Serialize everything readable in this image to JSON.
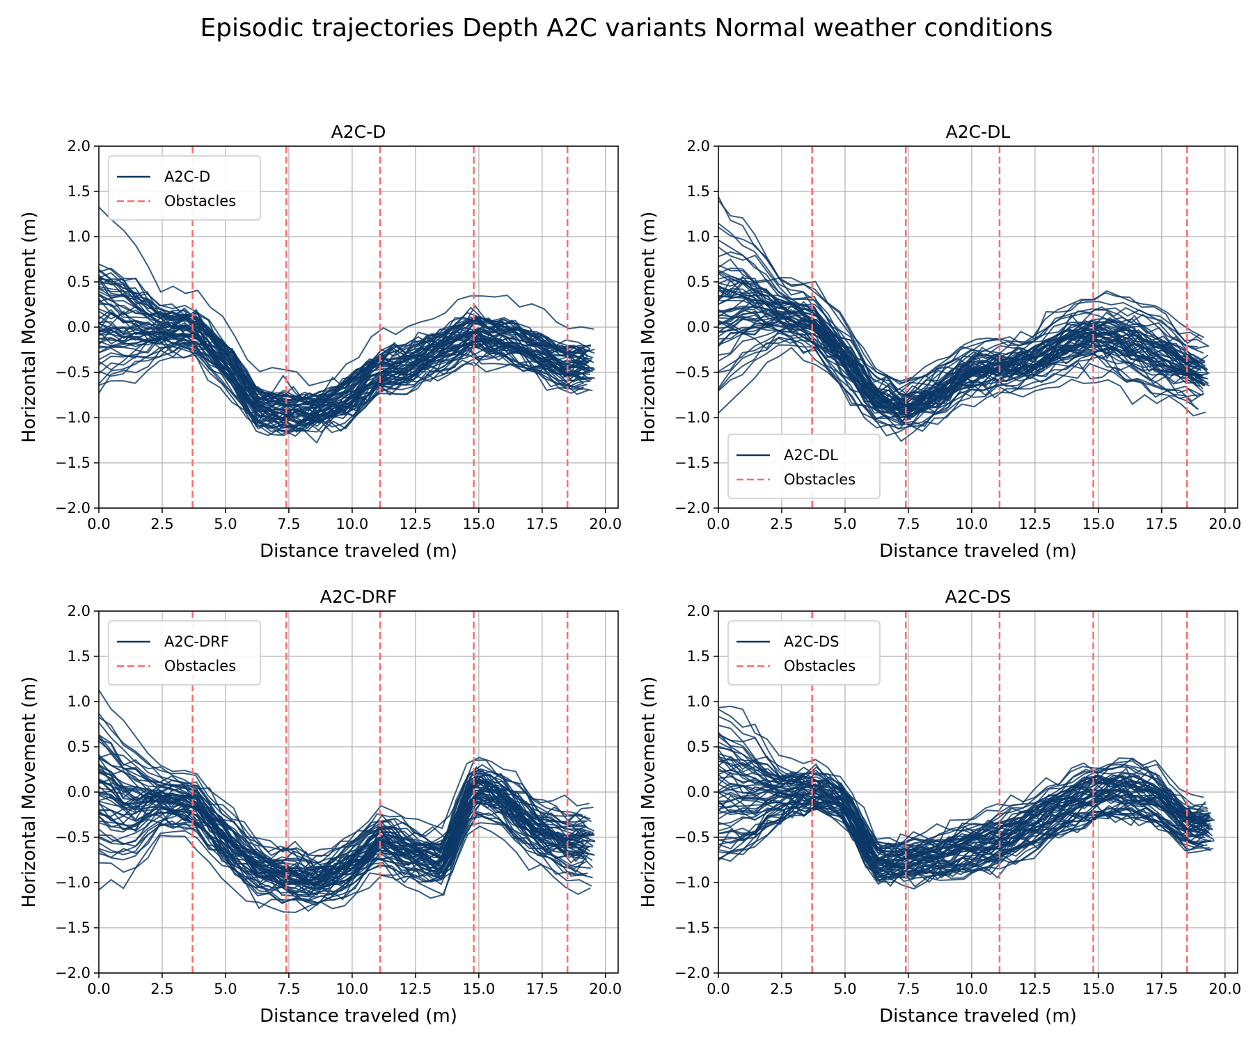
{
  "figure": {
    "title": "Episodic trajectories Depth  A2C variants Normal weather conditions"
  },
  "chart_data": [
    {
      "type": "line",
      "title": "A2C-D",
      "xlabel": "Distance traveled (m)",
      "ylabel": "Horizontal Movement (m)",
      "xlim": [
        0,
        20.5
      ],
      "ylim": [
        -2.0,
        2.0
      ],
      "xticks": [
        "0.0",
        "2.5",
        "5.0",
        "7.5",
        "10.0",
        "12.5",
        "15.0",
        "17.5",
        "20.0"
      ],
      "yticks": [
        "2.0",
        "1.5",
        "1.0",
        "0.5",
        "0.0",
        "−0.5",
        "−1.0",
        "−1.5",
        "−2.0"
      ],
      "grid": true,
      "legend_position": "top-left",
      "legend": [
        "A2C-D",
        "Obstacles"
      ],
      "obstacles_x": [
        3.7,
        7.4,
        11.1,
        14.8,
        18.5
      ],
      "series_color": "#0b3866",
      "obstacle_color": "#ff6b6b",
      "x": [
        0,
        1.2,
        2.5,
        3.7,
        5.0,
        6.2,
        7.4,
        8.6,
        9.9,
        11.1,
        12.3,
        13.6,
        14.8,
        16.0,
        17.3,
        18.5,
        19.6
      ],
      "mean": [
        0.05,
        0.0,
        -0.05,
        -0.05,
        -0.4,
        -0.9,
        -0.95,
        -0.95,
        -0.8,
        -0.5,
        -0.45,
        -0.25,
        -0.1,
        -0.15,
        -0.3,
        -0.45,
        -0.45
      ],
      "spread": [
        0.55,
        0.45,
        0.2,
        0.2,
        0.2,
        0.2,
        0.2,
        0.15,
        0.2,
        0.2,
        0.2,
        0.2,
        0.2,
        0.2,
        0.2,
        0.2,
        0.2
      ],
      "n_trajectories": 60
    },
    {
      "type": "line",
      "title": "A2C-DL",
      "xlabel": "Distance traveled (m)",
      "ylabel": "Horizontal Movement (m)",
      "xlim": [
        0,
        20.5
      ],
      "ylim": [
        -2.0,
        2.0
      ],
      "xticks": [
        "0.0",
        "2.5",
        "5.0",
        "7.5",
        "10.0",
        "12.5",
        "15.0",
        "17.5",
        "20.0"
      ],
      "yticks": [
        "2.0",
        "1.5",
        "1.0",
        "0.5",
        "0.0",
        "−0.5",
        "−1.0",
        "−1.5",
        "−2.0"
      ],
      "grid": true,
      "legend_position": "bottom-left",
      "legend": [
        "A2C-DL",
        "Obstacles"
      ],
      "obstacles_x": [
        3.7,
        7.4,
        11.1,
        14.8,
        18.5
      ],
      "series_color": "#0b3866",
      "obstacle_color": "#ff6b6b",
      "x": [
        0,
        1.2,
        2.5,
        3.7,
        5.0,
        6.2,
        7.4,
        8.6,
        9.9,
        11.1,
        12.3,
        13.6,
        14.8,
        16.0,
        17.3,
        18.5,
        19.4
      ],
      "mean": [
        0.2,
        0.25,
        0.15,
        0.05,
        -0.35,
        -0.8,
        -0.9,
        -0.75,
        -0.5,
        -0.45,
        -0.4,
        -0.2,
        -0.1,
        -0.15,
        -0.3,
        -0.45,
        -0.55
      ],
      "spread": [
        0.55,
        0.4,
        0.2,
        0.2,
        0.2,
        0.15,
        0.15,
        0.15,
        0.15,
        0.15,
        0.15,
        0.2,
        0.2,
        0.25,
        0.25,
        0.2,
        0.2
      ],
      "n_trajectories": 60
    },
    {
      "type": "line",
      "title": "A2C-DRF",
      "xlabel": "Distance traveled (m)",
      "ylabel": "Horizontal Movement (m)",
      "xlim": [
        0,
        20.5
      ],
      "ylim": [
        -2.0,
        2.0
      ],
      "xticks": [
        "0.0",
        "2.5",
        "5.0",
        "7.5",
        "10.0",
        "12.5",
        "15.0",
        "17.5",
        "20.0"
      ],
      "yticks": [
        "2.0",
        "1.5",
        "1.0",
        "0.5",
        "0.0",
        "−0.5",
        "−1.0",
        "−1.5",
        "−2.0"
      ],
      "grid": true,
      "legend_position": "top-left",
      "legend": [
        "A2C-DRF",
        "Obstacles"
      ],
      "obstacles_x": [
        3.7,
        7.4,
        11.1,
        14.8,
        18.5
      ],
      "series_color": "#0b3866",
      "obstacle_color": "#ff6b6b",
      "x": [
        0,
        1.2,
        2.5,
        3.7,
        5.0,
        6.2,
        7.4,
        8.6,
        9.9,
        11.1,
        12.3,
        13.6,
        14.8,
        16.0,
        17.3,
        18.5,
        19.6
      ],
      "mean": [
        0.0,
        -0.2,
        -0.1,
        -0.15,
        -0.55,
        -0.85,
        -0.95,
        -1.0,
        -0.85,
        -0.55,
        -0.7,
        -0.8,
        0.05,
        -0.1,
        -0.45,
        -0.6,
        -0.6
      ],
      "spread": [
        0.55,
        0.45,
        0.2,
        0.2,
        0.2,
        0.2,
        0.2,
        0.15,
        0.2,
        0.2,
        0.2,
        0.2,
        0.2,
        0.2,
        0.2,
        0.25,
        0.25
      ],
      "n_trajectories": 60
    },
    {
      "type": "line",
      "title": "A2C-DS",
      "xlabel": "Distance traveled (m)",
      "ylabel": "Horizontal Movement (m)",
      "xlim": [
        0,
        20.5
      ],
      "ylim": [
        -2.0,
        2.0
      ],
      "xticks": [
        "0.0",
        "2.5",
        "5.0",
        "7.5",
        "10.0",
        "12.5",
        "15.0",
        "17.5",
        "20.0"
      ],
      "yticks": [
        "2.0",
        "1.5",
        "1.0",
        "0.5",
        "0.0",
        "−0.5",
        "−1.0",
        "−1.5",
        "−2.0"
      ],
      "grid": true,
      "legend_position": "top-left",
      "legend": [
        "A2C-DS",
        "Obstacles"
      ],
      "obstacles_x": [
        3.7,
        7.4,
        11.1,
        14.8,
        18.5
      ],
      "series_color": "#0b3866",
      "obstacle_color": "#ff6b6b",
      "x": [
        0,
        1.2,
        2.5,
        3.7,
        5.0,
        6.2,
        7.4,
        8.6,
        9.9,
        11.1,
        12.3,
        13.6,
        14.8,
        16.0,
        17.3,
        18.5,
        19.6
      ],
      "mean": [
        0.1,
        0.05,
        0.0,
        0.05,
        -0.1,
        -0.75,
        -0.75,
        -0.7,
        -0.6,
        -0.5,
        -0.35,
        -0.15,
        0.0,
        0.05,
        -0.05,
        -0.35,
        -0.35
      ],
      "spread": [
        0.55,
        0.45,
        0.2,
        0.15,
        0.15,
        0.15,
        0.15,
        0.15,
        0.2,
        0.2,
        0.2,
        0.2,
        0.2,
        0.2,
        0.2,
        0.15,
        0.15
      ],
      "n_trajectories": 60
    }
  ]
}
